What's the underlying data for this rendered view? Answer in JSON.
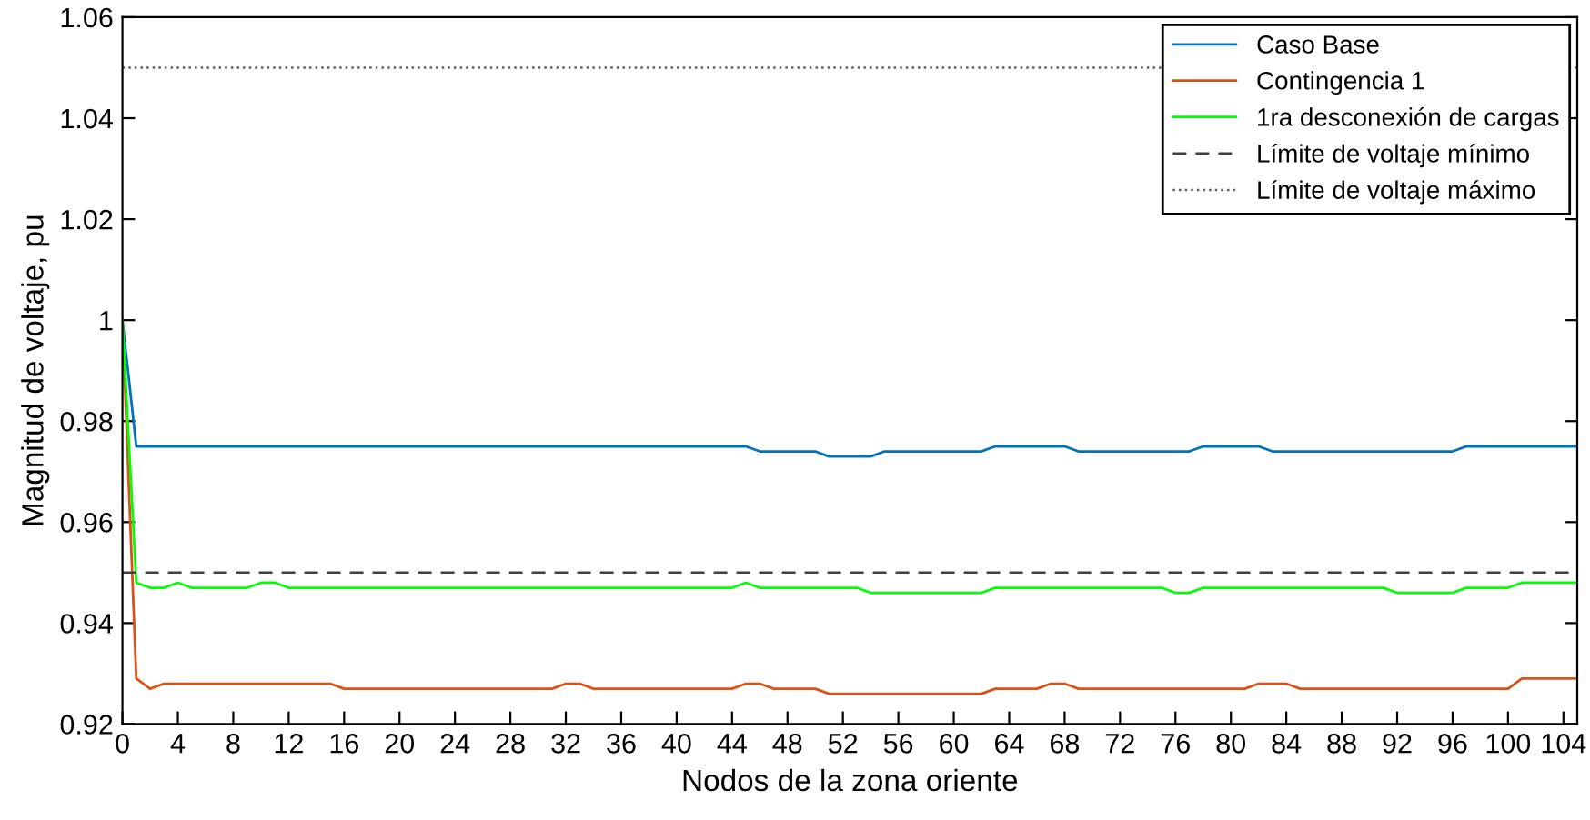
{
  "chart_data": {
    "type": "line",
    "xlabel": "Nodos de la zona oriente",
    "ylabel": "Magnitud de voltaje, pu",
    "xlim": [
      0,
      105
    ],
    "ylim": [
      0.92,
      1.06
    ],
    "xticks": [
      0,
      4,
      8,
      12,
      16,
      20,
      24,
      28,
      32,
      36,
      40,
      44,
      48,
      52,
      56,
      60,
      64,
      68,
      72,
      76,
      80,
      84,
      88,
      92,
      96,
      100,
      104
    ],
    "yticks": [
      0.92,
      0.94,
      0.96,
      0.98,
      1,
      1.02,
      1.04,
      1.06
    ],
    "grid": false,
    "legend": "top right",
    "marker": "none",
    "line_style": "solid",
    "series": [
      {
        "name": "Caso Base",
        "color": "#0072bd",
        "x": [
          0,
          1,
          45,
          46,
          50,
          51,
          54,
          55,
          62,
          63,
          68,
          69,
          77,
          78,
          82,
          83,
          96,
          97,
          105
        ],
        "values": [
          1.0,
          0.975,
          0.975,
          0.974,
          0.974,
          0.973,
          0.973,
          0.974,
          0.974,
          0.975,
          0.975,
          0.974,
          0.974,
          0.975,
          0.975,
          0.974,
          0.974,
          0.975,
          0.975
        ]
      },
      {
        "name": "Contingencia 1",
        "color": "#d95319",
        "x": [
          0,
          1,
          2,
          3,
          15,
          16,
          31,
          32,
          33,
          34,
          44,
          45,
          46,
          47,
          50,
          51,
          62,
          63,
          66,
          67,
          68,
          69,
          81,
          82,
          84,
          85,
          100,
          101,
          105
        ],
        "values": [
          1.0,
          0.929,
          0.927,
          0.928,
          0.928,
          0.927,
          0.927,
          0.928,
          0.928,
          0.927,
          0.927,
          0.928,
          0.928,
          0.927,
          0.927,
          0.926,
          0.926,
          0.927,
          0.927,
          0.928,
          0.928,
          0.927,
          0.927,
          0.928,
          0.928,
          0.927,
          0.927,
          0.929,
          0.929
        ]
      },
      {
        "name": "1ra desconexión de cargas",
        "color": "#00ff00",
        "x": [
          0,
          1,
          2,
          3,
          4,
          5,
          9,
          10,
          11,
          12,
          44,
          45,
          46,
          53,
          54,
          62,
          63,
          75,
          76,
          77,
          78,
          91,
          92,
          96,
          97,
          100,
          101,
          105
        ],
        "values": [
          1.0,
          0.948,
          0.947,
          0.947,
          0.948,
          0.947,
          0.947,
          0.948,
          0.948,
          0.947,
          0.947,
          0.948,
          0.947,
          0.947,
          0.946,
          0.946,
          0.947,
          0.947,
          0.946,
          0.946,
          0.947,
          0.947,
          0.946,
          0.946,
          0.947,
          0.947,
          0.948,
          0.948
        ]
      }
    ],
    "ref_lines": [
      {
        "axis": "y",
        "value": 0.95,
        "label": "Límite de voltaje mínimo",
        "color": "#404040",
        "line_style": "dashed"
      },
      {
        "axis": "y",
        "value": 1.05,
        "label": "Límite de voltaje máximo",
        "color": "#606060",
        "line_style": "dotted"
      }
    ]
  }
}
